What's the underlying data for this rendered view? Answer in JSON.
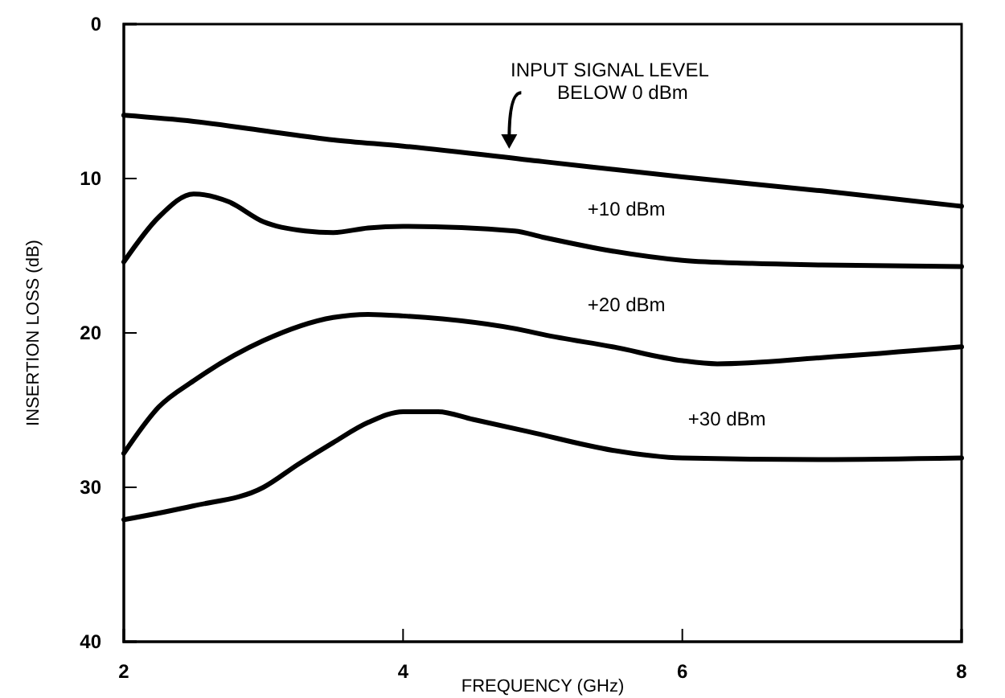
{
  "chart_data": {
    "type": "line",
    "xlabel": "FREQUENCY (GHz)",
    "ylabel": "INSERTION LOSS (dB)",
    "xlim": [
      2,
      8
    ],
    "xticks": [
      2,
      4,
      6,
      8
    ],
    "ylim": [
      40,
      0
    ],
    "yticks": [
      0,
      10,
      20,
      30,
      40
    ],
    "grid": false,
    "marker": "none",
    "line_style": "solid",
    "series": [
      {
        "name": "INPUT SIGNAL LEVEL BELOW 0 dBm",
        "color": "#000000",
        "x": [
          2,
          2.5,
          3,
          3.5,
          4,
          5,
          6,
          7,
          8
        ],
        "values": [
          5.9,
          6.3,
          6.9,
          7.5,
          7.9,
          8.9,
          9.9,
          10.8,
          11.8
        ]
      },
      {
        "name": "+10 dBm",
        "color": "#000000",
        "x": [
          2,
          2.25,
          2.5,
          2.75,
          3,
          3.3,
          3.5,
          3.75,
          4,
          4.8,
          5,
          5.5,
          6,
          6.5,
          7,
          8
        ],
        "values": [
          15.4,
          12.5,
          11.0,
          11.5,
          12.8,
          13.4,
          13.5,
          13.2,
          13.1,
          13.4,
          13.8,
          14.7,
          15.3,
          15.5,
          15.6,
          15.7
        ]
      },
      {
        "name": "+20 dBm",
        "color": "#000000",
        "x": [
          2,
          2.25,
          2.5,
          3,
          3.5,
          3.75,
          4,
          4.9,
          5,
          5.5,
          6,
          6.25,
          7,
          8
        ],
        "values": [
          27.8,
          24.8,
          23.1,
          20.5,
          19.0,
          18.8,
          18.9,
          19.9,
          20.1,
          20.9,
          21.8,
          22.0,
          21.6,
          20.9
        ]
      },
      {
        "name": "+30 dBm",
        "color": "#000000",
        "x": [
          2,
          2.5,
          3,
          3.25,
          3.5,
          3.75,
          4,
          4.25,
          4.5,
          4.9,
          5.5,
          6,
          7,
          8
        ],
        "values": [
          32.1,
          31.2,
          30.0,
          28.5,
          27.1,
          25.8,
          25.1,
          25.1,
          25.6,
          26.4,
          27.6,
          28.1,
          28.2,
          28.1
        ]
      }
    ]
  }
}
